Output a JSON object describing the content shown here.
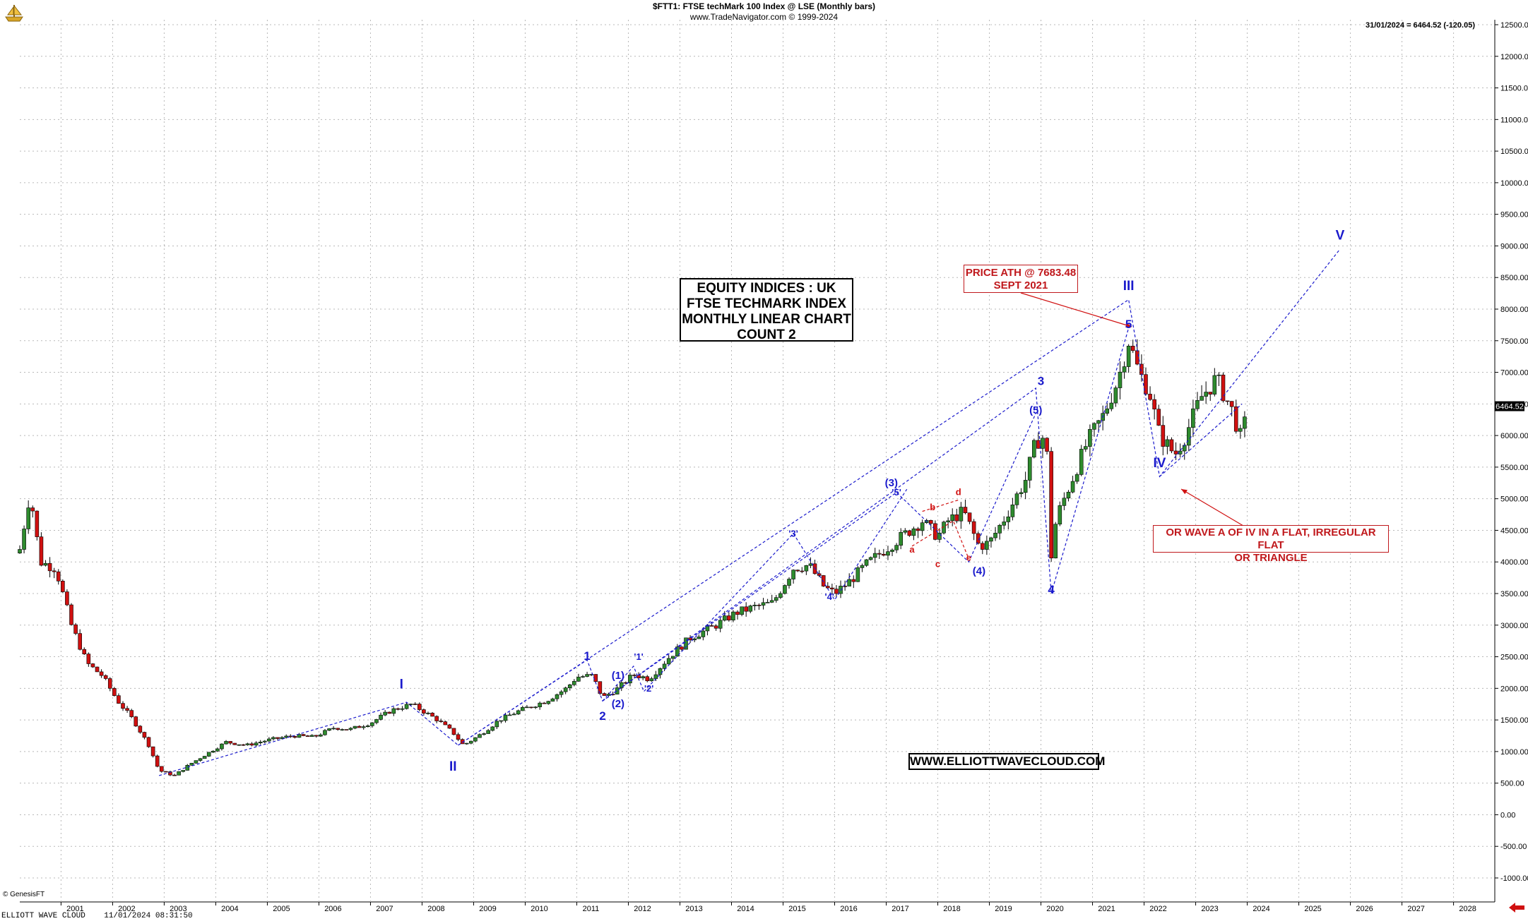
{
  "header": {
    "title": "$FTT1:  FTSE techMark 100 Index @ LSE  (Monthly bars)",
    "subtitle": "www.TradeNavigator.com © 1999-2024",
    "last_quote": "31/01/2024 = 6464.52 (-120.05)",
    "price_tag": "6464.52"
  },
  "title_box": {
    "line1": "EQUITY INDICES : UK",
    "line2": "FTSE TECHMARK INDEX",
    "line3": "MONTHLY LINEAR CHART",
    "line4": "COUNT 2"
  },
  "ath_box": {
    "line1": "PRICE ATH @ 7683.48",
    "line2": "SEPT 2021"
  },
  "alt_box": {
    "line1": "OR WAVE A OF IV IN A FLAT, IRREGULAR FLAT",
    "line2": "OR TRIANGLE"
  },
  "website": "WWW.ELLIOTTWAVECLOUD.COM",
  "footer": {
    "brand": "ELLIOTT WAVE CLOUD",
    "timestamp": "11/01/2024 08:31:50",
    "genesis": "© GenesisFT"
  },
  "colors": {
    "up": "#2e8b2e",
    "down": "#d01010",
    "wave_blue": "#1a1acc",
    "wave_red": "#d01010",
    "grid": "#b8b8b8"
  },
  "icons": {
    "logo": "navigator-ship-icon",
    "nav": "left-arrow-icon"
  },
  "chart_data": {
    "type": "candlestick",
    "x": [
      "2001",
      "2002",
      "2003",
      "2004",
      "2005",
      "2006",
      "2007",
      "2008",
      "2009",
      "2010",
      "2011",
      "2012",
      "2013",
      "2014",
      "2015",
      "2016",
      "2017",
      "2018",
      "2019",
      "2020",
      "2021",
      "2022",
      "2023",
      "2024",
      "2025",
      "2026",
      "2027",
      "2028"
    ],
    "xlim": [
      2000.2,
      2028.8
    ],
    "ylim": [
      -1000,
      12500
    ],
    "y_ticks": [
      -1000,
      -500,
      0,
      500,
      1000,
      1500,
      2000,
      2500,
      3000,
      3500,
      4000,
      4500,
      5000,
      5500,
      6000,
      6500,
      7000,
      7500,
      8000,
      8500,
      9000,
      9500,
      10000,
      10500,
      11000,
      11500,
      12000,
      12500
    ],
    "y_tick_labels": [
      "-1000.00",
      "-500.00",
      "0.00",
      "500.00",
      "1000.00",
      "1500.00",
      "2000.00",
      "2500.00",
      "3000.00",
      "3500.00",
      "4000.00",
      "4500.00",
      "5000.00",
      "5500.00",
      "6000.00",
      "6500.00",
      "7000.00",
      "7500.00",
      "8000.00",
      "8500.00",
      "9000.00",
      "9500.00",
      "10000.00",
      "10500.00",
      "11000.00",
      "11500.00",
      "12000.00",
      "12500.00"
    ],
    "grid": true,
    "series": [
      {
        "values": [
          [
            2000.2,
            4200
          ],
          [
            2000.4,
            5100
          ],
          [
            2000.6,
            4000
          ],
          [
            2000.9,
            3900
          ],
          [
            2001.2,
            3000
          ],
          [
            2001.5,
            2400
          ],
          [
            2001.8,
            2200
          ],
          [
            2002.1,
            1800
          ],
          [
            2002.4,
            1500
          ],
          [
            2002.7,
            1100
          ],
          [
            2002.9,
            700
          ],
          [
            2003.2,
            620
          ],
          [
            2003.5,
            800
          ],
          [
            2003.8,
            950
          ],
          [
            2004.2,
            1150
          ],
          [
            2004.6,
            1100
          ],
          [
            2005.0,
            1180
          ],
          [
            2005.5,
            1250
          ],
          [
            2005.9,
            1230
          ],
          [
            2006.3,
            1380
          ],
          [
            2006.6,
            1350
          ],
          [
            2007.0,
            1450
          ],
          [
            2007.4,
            1650
          ],
          [
            2007.8,
            1750
          ],
          [
            2008.3,
            1500
          ],
          [
            2008.6,
            1300
          ],
          [
            2008.8,
            1100
          ],
          [
            2009.1,
            1250
          ],
          [
            2009.5,
            1500
          ],
          [
            2009.9,
            1650
          ],
          [
            2010.4,
            1800
          ],
          [
            2010.8,
            2000
          ],
          [
            2011.0,
            2180
          ],
          [
            2011.3,
            2200
          ],
          [
            2011.5,
            1850
          ],
          [
            2011.8,
            2000
          ],
          [
            2012.1,
            2220
          ],
          [
            2012.4,
            2150
          ],
          [
            2012.8,
            2500
          ],
          [
            2013.2,
            2800
          ],
          [
            2013.7,
            3000
          ],
          [
            2014.1,
            3200
          ],
          [
            2014.5,
            3300
          ],
          [
            2014.8,
            3350
          ],
          [
            2015.2,
            3900
          ],
          [
            2015.5,
            3950
          ],
          [
            2015.8,
            3600
          ],
          [
            2016.0,
            3500
          ],
          [
            2016.3,
            3700
          ],
          [
            2016.6,
            3950
          ],
          [
            2016.9,
            4150
          ],
          [
            2017.3,
            4400
          ],
          [
            2017.7,
            4650
          ],
          [
            2018.0,
            4400
          ],
          [
            2018.2,
            4650
          ],
          [
            2018.5,
            4800
          ],
          [
            2018.8,
            4250
          ],
          [
            2019.0,
            4300
          ],
          [
            2019.3,
            4700
          ],
          [
            2019.7,
            5300
          ],
          [
            2019.9,
            5900
          ],
          [
            2020.1,
            6000
          ],
          [
            2020.2,
            4100
          ],
          [
            2020.3,
            4700
          ],
          [
            2020.6,
            5300
          ],
          [
            2020.9,
            5900
          ],
          [
            2021.2,
            6300
          ],
          [
            2021.5,
            6900
          ],
          [
            2021.7,
            7500
          ],
          [
            2021.9,
            7000
          ],
          [
            2022.1,
            6700
          ],
          [
            2022.3,
            6000
          ],
          [
            2022.6,
            5700
          ],
          [
            2022.8,
            6000
          ],
          [
            2023.1,
            6600
          ],
          [
            2023.4,
            6900
          ],
          [
            2023.7,
            6400
          ],
          [
            2023.9,
            5900
          ],
          [
            2024.0,
            6464
          ]
        ]
      }
    ],
    "wave_labels_blue": [
      "I",
      "II",
      "III",
      "IV",
      "V",
      "1",
      "2",
      "3",
      "4",
      "5",
      "(1)",
      "(2)",
      "(3)",
      "(4)",
      "(5)",
      "'1'",
      "'2'",
      "'3'",
      "'4'",
      "'5'"
    ],
    "wave_labels_red": [
      "a",
      "b",
      "c",
      "d",
      "e"
    ]
  }
}
